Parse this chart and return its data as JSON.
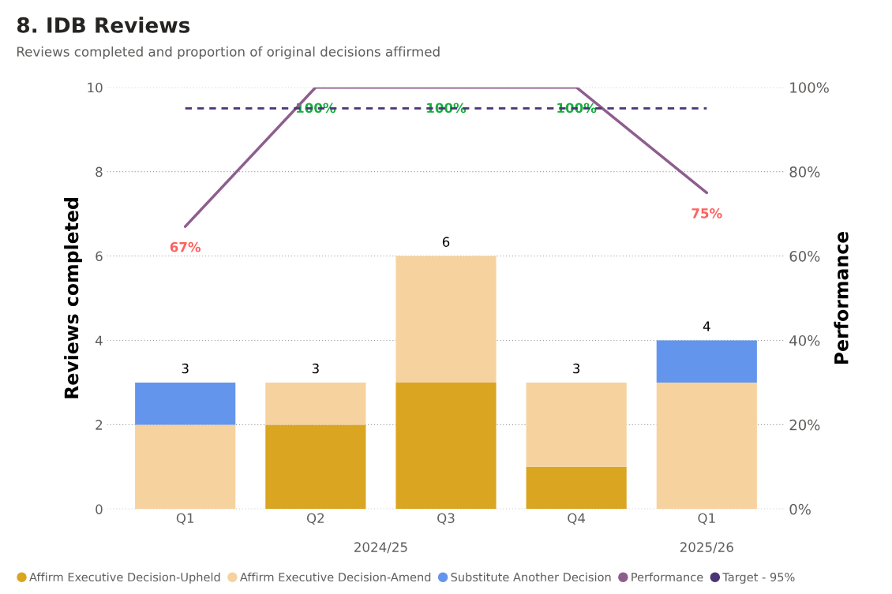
{
  "chart_data": {
    "type": "bar",
    "stacked": true,
    "title": "8. IDB Reviews",
    "subtitle": "Reviews completed and proportion of original decisions affirmed",
    "ylabel": "Reviews completed",
    "y2label": "Performance",
    "categories": [
      "Q1",
      "Q2",
      "Q3",
      "Q4",
      "Q1"
    ],
    "annotations": [
      "2024/25",
      "2025/26"
    ],
    "series": [
      {
        "name": "Affirm Executive Decision-Upheld",
        "color": "#daa520",
        "values": [
          0,
          2,
          3,
          1,
          0
        ]
      },
      {
        "name": "Affirm Executive Decision-Amend",
        "color": "#f6d29f",
        "values": [
          2,
          1,
          3,
          2,
          3
        ]
      },
      {
        "name": "Substitute Another Decision",
        "color": "#6495ed",
        "values": [
          1,
          0,
          0,
          0,
          1
        ]
      },
      {
        "name": "Performance",
        "type": "line",
        "axis": "y2",
        "color": "#8e5e8e",
        "values": [
          67,
          100,
          100,
          100,
          75
        ],
        "value_labels": [
          "67%",
          "100%",
          "100%",
          "100%",
          "75%"
        ]
      },
      {
        "name": "Target - 95%",
        "type": "line",
        "axis": "y2",
        "color": "#4b3575",
        "line_style": "dashed",
        "values": [
          95,
          95,
          95,
          95,
          95
        ]
      }
    ],
    "totals": [
      "3",
      "3",
      "6",
      "3",
      "4"
    ],
    "ylim": [
      0,
      10
    ],
    "yticks": [
      0,
      2,
      4,
      6,
      8,
      10
    ],
    "y2lim": [
      0,
      100
    ],
    "y2ticks": [
      {
        "value": 0,
        "label": "0%"
      },
      {
        "value": 20,
        "label": "20%"
      },
      {
        "value": 40,
        "label": "40%"
      },
      {
        "value": 60,
        "label": "60%"
      },
      {
        "value": 80,
        "label": "80%"
      },
      {
        "value": 100,
        "label": "100%"
      }
    ],
    "grid": "y",
    "legend": "bottom",
    "marker": "none"
  }
}
